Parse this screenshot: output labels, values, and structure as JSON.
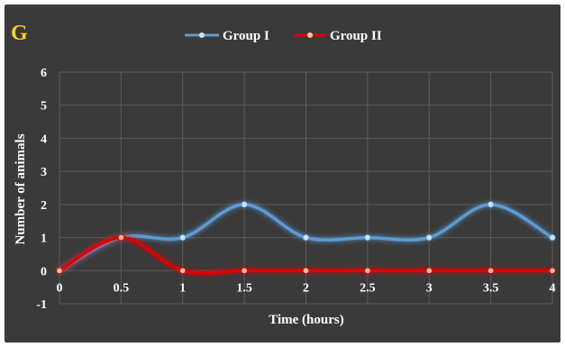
{
  "panel_label": "G",
  "colors": {
    "background": "#3a3a3a",
    "grid": "#5a5a5a",
    "text": "#ffffff",
    "panel_label": "#ffd21f",
    "group1": "#5b9bd5",
    "group2": "#e00000",
    "group2_marker": "#f6c79a"
  },
  "chart_data": {
    "type": "line",
    "xlabel": "Time (hours)",
    "ylabel": "Number of animals",
    "x": [
      0,
      0.5,
      1,
      1.5,
      2,
      2.5,
      3,
      3.5,
      4
    ],
    "x_tick_labels": [
      "0",
      "0.5",
      "1",
      "1.5",
      "2",
      "2.5",
      "3",
      "3.5",
      "4"
    ],
    "ylim": [
      -1,
      6
    ],
    "y_ticks": [
      -1,
      0,
      1,
      2,
      3,
      4,
      5,
      6
    ],
    "y_tick_labels": [
      "-1",
      "0",
      "1",
      "2",
      "3",
      "4",
      "5",
      "6"
    ],
    "grid": true,
    "legend_position": "top-center",
    "smooth": true,
    "series": [
      {
        "name": "Group I",
        "color": "#5b9bd5",
        "values": [
          0,
          1,
          1,
          2,
          1,
          1,
          1,
          2,
          1
        ]
      },
      {
        "name": "Group II",
        "color": "#e00000",
        "values": [
          0,
          1,
          0,
          0,
          0,
          0,
          0,
          0,
          0
        ]
      }
    ]
  }
}
